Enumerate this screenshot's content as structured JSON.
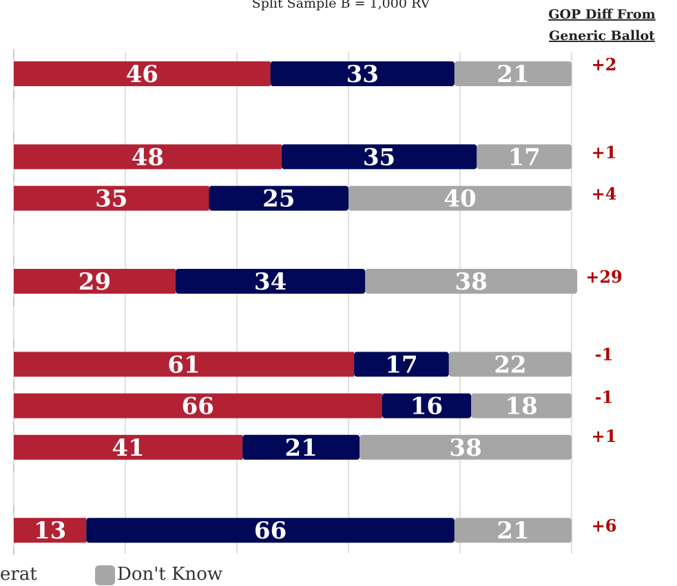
{
  "subtitle": "Split Sample B = 1,000 RV",
  "diff_header": [
    "GOP Diff From",
    "Generic Ballot"
  ],
  "legend": [
    {
      "label": "erat",
      "color": "#000857"
    },
    {
      "label": "Don't Know",
      "color": "#a6a6a6"
    }
  ],
  "chart_data": {
    "type": "bar",
    "orientation": "horizontal",
    "stacked": true,
    "xlim": [
      0,
      100
    ],
    "grid": true,
    "colors": {
      "republican": "#b22234",
      "democrat": "#000857",
      "dont_know": "#a6a6a6",
      "diff_text": "#b00000"
    },
    "rows": [
      {
        "slot": 0,
        "values": [
          46,
          33,
          21
        ],
        "diff": "+2"
      },
      {
        "slot": 2,
        "values": [
          48,
          35,
          17
        ],
        "diff": "+1"
      },
      {
        "slot": 3,
        "values": [
          35,
          25,
          40
        ],
        "diff": "+4"
      },
      {
        "slot": 5,
        "values": [
          29,
          34,
          38
        ],
        "diff": "+29"
      },
      {
        "slot": 7,
        "values": [
          61,
          17,
          22
        ],
        "diff": "-1"
      },
      {
        "slot": 8,
        "values": [
          66,
          16,
          18
        ],
        "diff": "-1"
      },
      {
        "slot": 9,
        "values": [
          41,
          21,
          38
        ],
        "diff": "+1"
      },
      {
        "slot": 11,
        "values": [
          13,
          66,
          21
        ],
        "diff": "+6"
      }
    ]
  }
}
